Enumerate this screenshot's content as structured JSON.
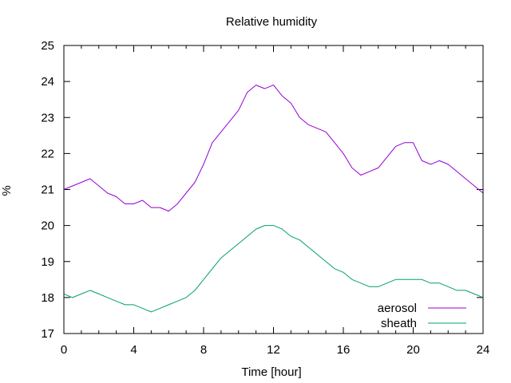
{
  "chart_data": {
    "type": "line",
    "title": "Relative humidity",
    "xlabel": "Time [hour]",
    "ylabel": "%",
    "xlim": [
      0,
      24
    ],
    "ylim": [
      17,
      25
    ],
    "xticks": [
      0,
      4,
      8,
      12,
      16,
      20,
      24
    ],
    "yticks": [
      17,
      18,
      19,
      20,
      21,
      22,
      23,
      24,
      25
    ],
    "grid": false,
    "legend_position": "bottom-right",
    "series": [
      {
        "name": "aerosol",
        "color": "#9400d3",
        "x": [
          0,
          0.5,
          1,
          1.5,
          2,
          2.5,
          3,
          3.5,
          4,
          4.5,
          5,
          5.5,
          6,
          6.5,
          7,
          7.5,
          8,
          8.5,
          9,
          9.5,
          10,
          10.5,
          11,
          11.5,
          12,
          12.5,
          13,
          13.5,
          14,
          14.5,
          15,
          15.5,
          16,
          16.5,
          17,
          17.5,
          18,
          18.5,
          19,
          19.5,
          20,
          20.5,
          21,
          21.5,
          22,
          22.5,
          23,
          23.5,
          24
        ],
        "values": [
          21.0,
          21.1,
          21.2,
          21.3,
          21.1,
          20.9,
          20.8,
          20.6,
          20.6,
          20.7,
          20.5,
          20.5,
          20.4,
          20.6,
          20.9,
          21.2,
          21.7,
          22.3,
          22.6,
          22.9,
          23.2,
          23.7,
          23.9,
          23.8,
          23.9,
          23.6,
          23.4,
          23.0,
          22.8,
          22.7,
          22.6,
          22.3,
          22.0,
          21.6,
          21.4,
          21.5,
          21.6,
          21.9,
          22.2,
          22.3,
          22.3,
          21.8,
          21.7,
          21.8,
          21.7,
          21.5,
          21.3,
          21.1,
          20.9
        ]
      },
      {
        "name": "sheath",
        "color": "#009e73",
        "x": [
          0,
          0.5,
          1,
          1.5,
          2,
          2.5,
          3,
          3.5,
          4,
          4.5,
          5,
          5.5,
          6,
          6.5,
          7,
          7.5,
          8,
          8.5,
          9,
          9.5,
          10,
          10.5,
          11,
          11.5,
          12,
          12.5,
          13,
          13.5,
          14,
          14.5,
          15,
          15.5,
          16,
          16.5,
          17,
          17.5,
          18,
          18.5,
          19,
          19.5,
          20,
          20.5,
          21,
          21.5,
          22,
          22.5,
          23,
          23.5,
          24
        ],
        "values": [
          18.1,
          18.0,
          18.1,
          18.2,
          18.1,
          18.0,
          17.9,
          17.8,
          17.8,
          17.7,
          17.6,
          17.7,
          17.8,
          17.9,
          18.0,
          18.2,
          18.5,
          18.8,
          19.1,
          19.3,
          19.5,
          19.7,
          19.9,
          20.0,
          20.0,
          19.9,
          19.7,
          19.6,
          19.4,
          19.2,
          19.0,
          18.8,
          18.7,
          18.5,
          18.4,
          18.3,
          18.3,
          18.4,
          18.5,
          18.5,
          18.5,
          18.5,
          18.4,
          18.4,
          18.3,
          18.2,
          18.2,
          18.1,
          18.0
        ]
      }
    ]
  }
}
